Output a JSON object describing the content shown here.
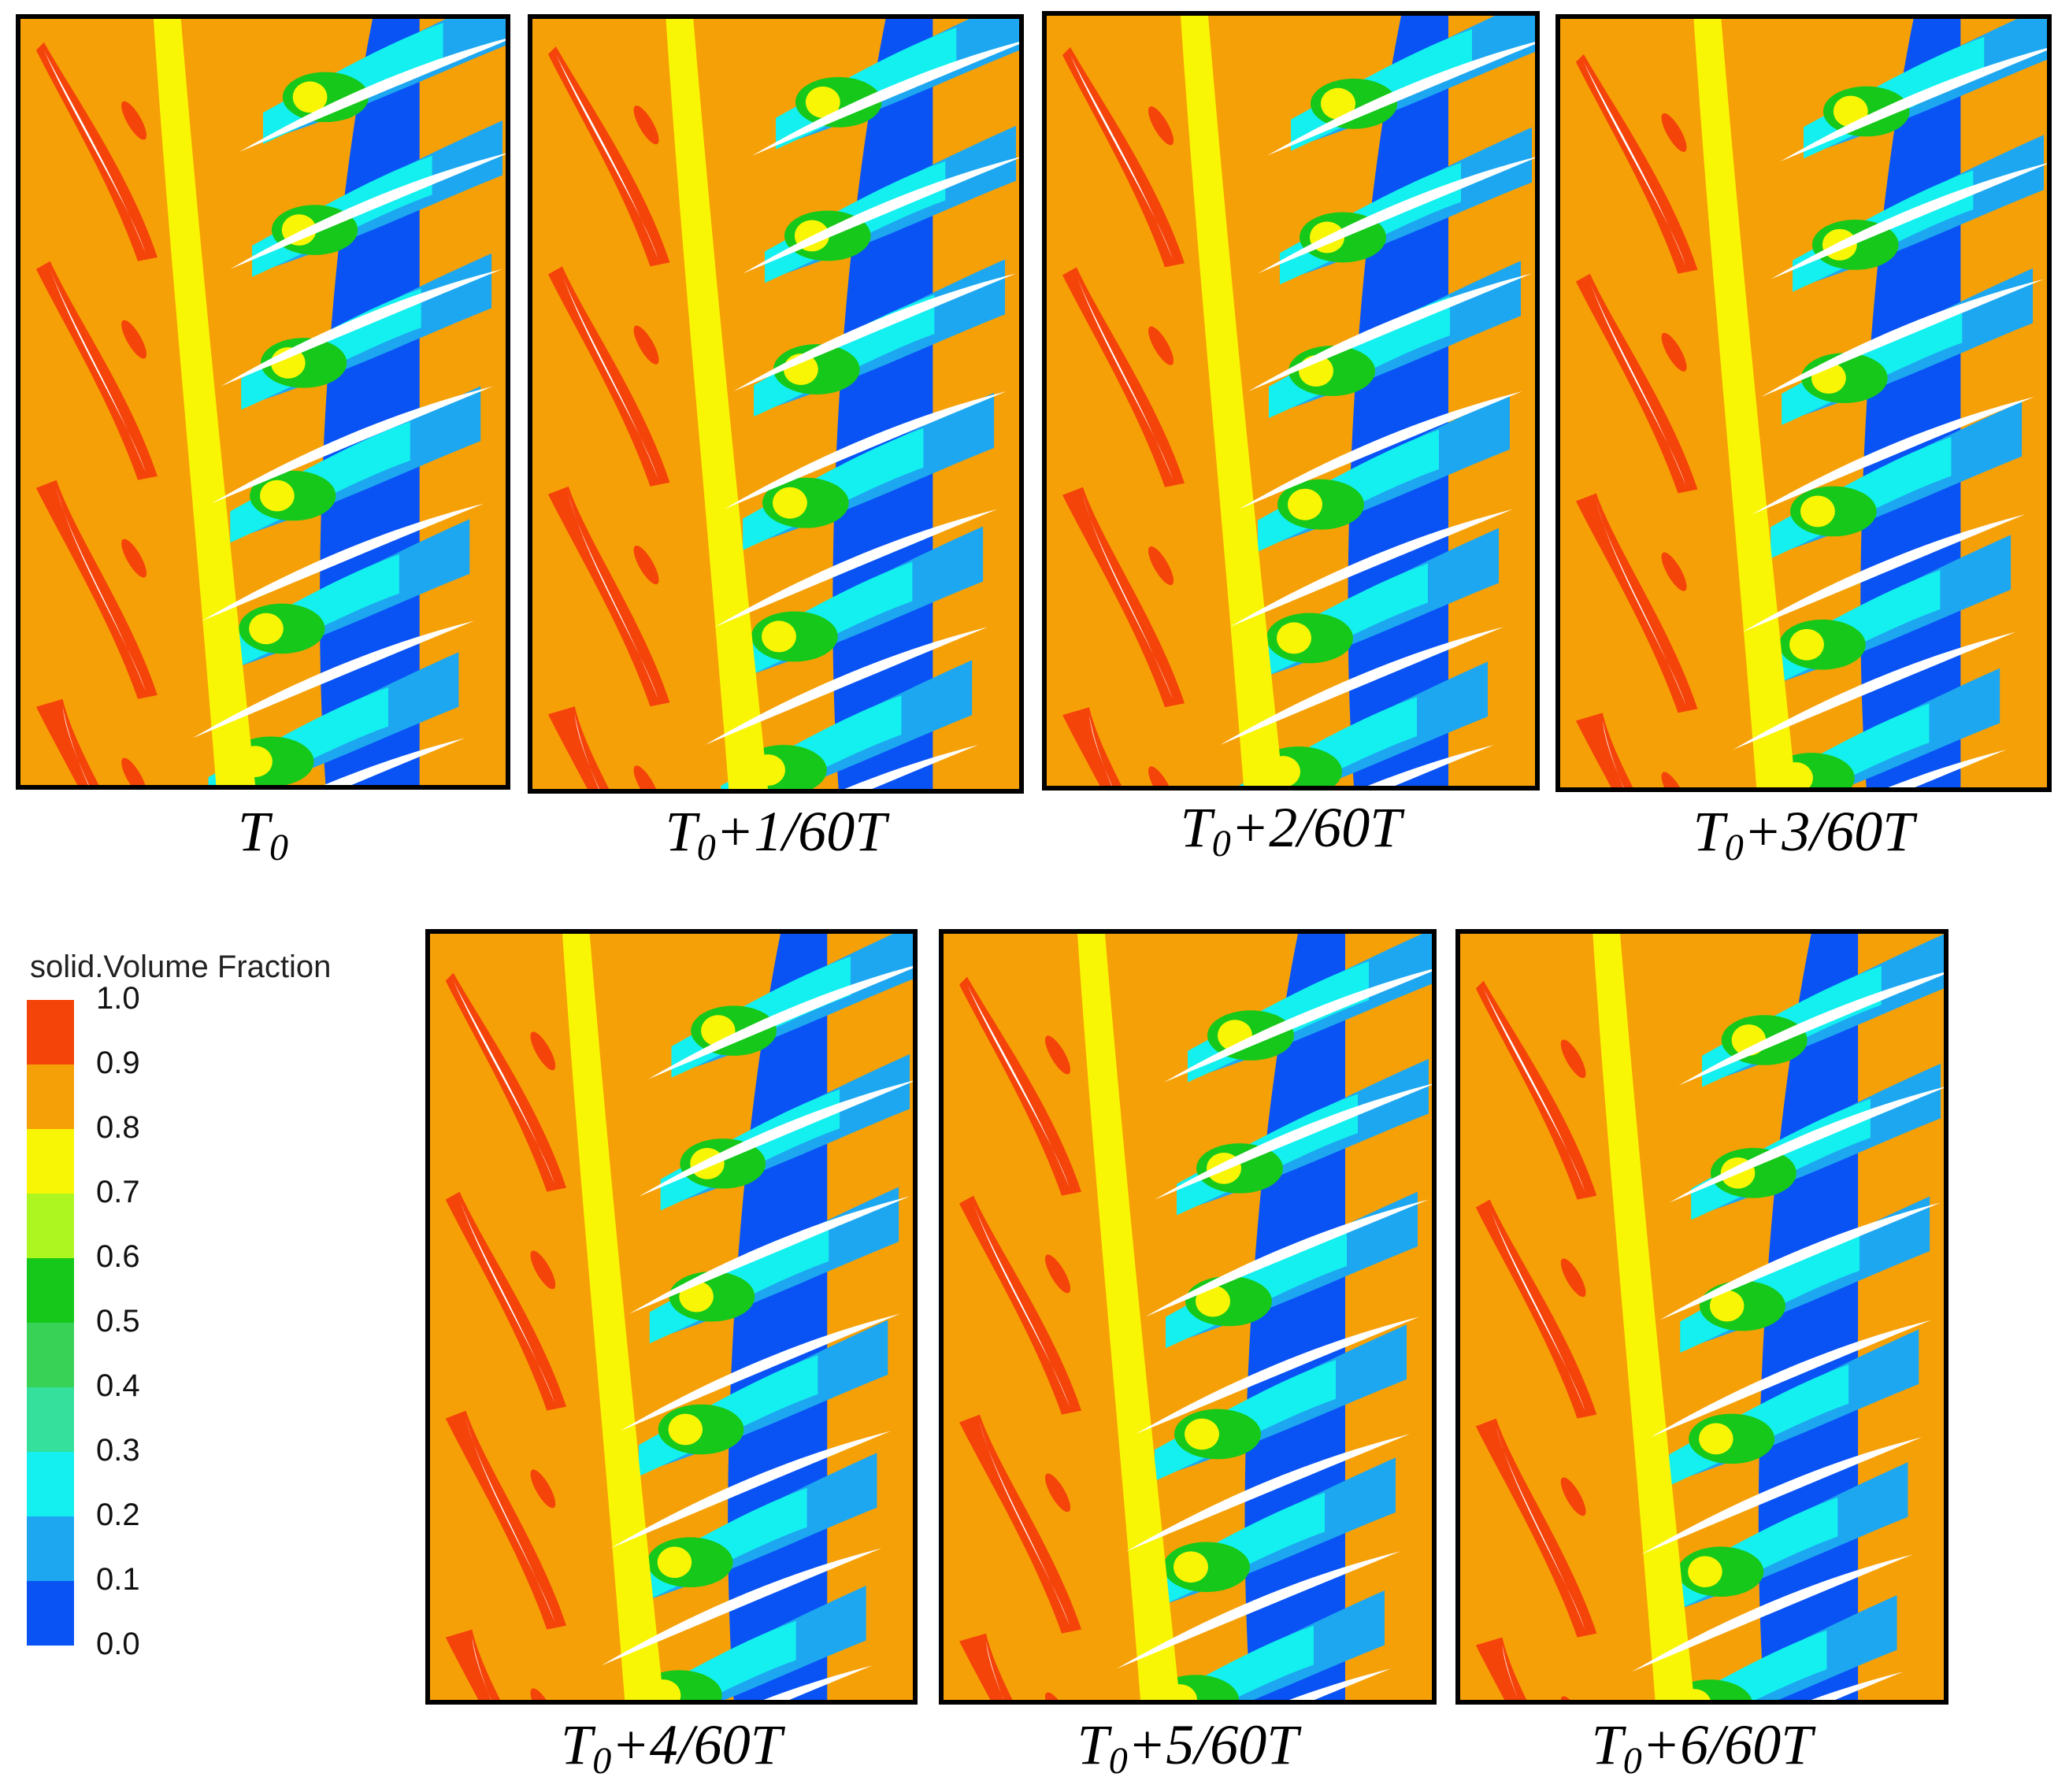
{
  "panels": [
    {
      "caption": {
        "base": "T",
        "sub": "0",
        "rest": ""
      }
    },
    {
      "caption": {
        "base": "T",
        "sub": "0",
        "rest": "+1/60T"
      }
    },
    {
      "caption": {
        "base": "T",
        "sub": "0",
        "rest": "+2/60T"
      }
    },
    {
      "caption": {
        "base": "T",
        "sub": "0",
        "rest": "+3/60T"
      }
    },
    {
      "caption": {
        "base": "T",
        "sub": "0",
        "rest": "+4/60T"
      }
    },
    {
      "caption": {
        "base": "T",
        "sub": "0",
        "rest": "+5/60T"
      }
    },
    {
      "caption": {
        "base": "T",
        "sub": "0",
        "rest": "+6/60T"
      }
    }
  ],
  "legend": {
    "title": "solid.Volume Fraction",
    "ticks": [
      "1.0",
      "0.9",
      "0.8",
      "0.7",
      "0.6",
      "0.5",
      "0.4",
      "0.3",
      "0.2",
      "0.1",
      "0.0"
    ],
    "colors": [
      "#f4440a",
      "#f6a007",
      "#f9f605",
      "#aef61f",
      "#16c81a",
      "#38d257",
      "#35df9c",
      "#13f0ef",
      "#1da7f0",
      "#0953f5"
    ]
  },
  "field_colors": {
    "dense": "#f6a007",
    "rich": "#f4440a",
    "mid": "#f9f605",
    "green": "#16c81a",
    "cyan": "#13f0ef",
    "light_blue": "#1da7f0",
    "dilute": "#0953f5",
    "blade": "#ffffff"
  }
}
